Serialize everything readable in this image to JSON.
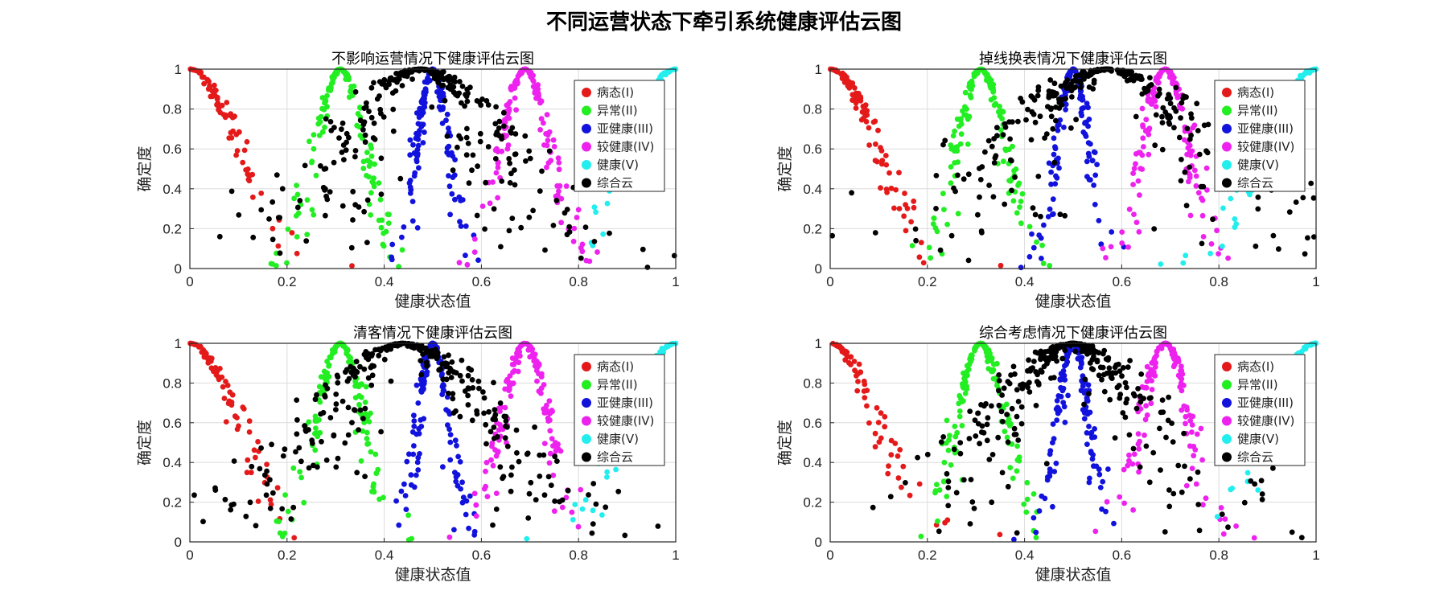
{
  "figure": {
    "suptitle": "不同运营状态下牵引系统健康评估云图"
  },
  "chart_data": [
    {
      "type": "scatter",
      "title": "不影响运营情况下健康评估云图",
      "xlabel": "健康状态值",
      "ylabel": "确定度",
      "xlim": [
        0,
        1
      ],
      "ylim": [
        0,
        1
      ],
      "xticks": [
        "0",
        "0.2",
        "0.4",
        "0.6",
        "0.8",
        "1"
      ],
      "yticks": [
        "0",
        "0.2",
        "0.4",
        "0.6",
        "0.8",
        "1"
      ],
      "grid": true,
      "legend_position": "top-right",
      "series": [
        {
          "name": "病态(I)",
          "color": "#e41a1a",
          "cloud": {
            "Ex": 0.0,
            "En": 0.1,
            "He": 0.012
          }
        },
        {
          "name": "异常(II)",
          "color": "#22ee22",
          "cloud": {
            "Ex": 0.31,
            "En": 0.05,
            "He": 0.008
          }
        },
        {
          "name": "亚健康(III)",
          "color": "#1212dd",
          "cloud": {
            "Ex": 0.5,
            "En": 0.033,
            "He": 0.006
          }
        },
        {
          "name": "较健康(IV)",
          "color": "#ee22ee",
          "cloud": {
            "Ex": 0.69,
            "En": 0.05,
            "He": 0.008
          }
        },
        {
          "name": "健康(V)",
          "color": "#22eeee",
          "cloud": {
            "Ex": 1.0,
            "En": 0.1,
            "He": 0.012
          }
        },
        {
          "name": "综合云",
          "color": "#000000",
          "cloud": {
            "Ex": 0.475,
            "En": 0.16,
            "He": 0.05
          }
        }
      ]
    },
    {
      "type": "scatter",
      "title": "掉线换表情况下健康评估云图",
      "xlabel": "健康状态值",
      "ylabel": "确定度",
      "xlim": [
        0,
        1
      ],
      "ylim": [
        0,
        1
      ],
      "xticks": [
        "0",
        "0.2",
        "0.4",
        "0.6",
        "0.8",
        "1"
      ],
      "yticks": [
        "0",
        "0.2",
        "0.4",
        "0.6",
        "0.8",
        "1"
      ],
      "grid": true,
      "legend_position": "top-right",
      "series": [
        {
          "name": "病态(I)",
          "color": "#e41a1a",
          "cloud": {
            "Ex": 0.0,
            "En": 0.1,
            "He": 0.012
          }
        },
        {
          "name": "异常(II)",
          "color": "#22ee22",
          "cloud": {
            "Ex": 0.31,
            "En": 0.05,
            "He": 0.008
          }
        },
        {
          "name": "亚健康(III)",
          "color": "#1212dd",
          "cloud": {
            "Ex": 0.5,
            "En": 0.033,
            "He": 0.006
          }
        },
        {
          "name": "较健康(IV)",
          "color": "#ee22ee",
          "cloud": {
            "Ex": 0.69,
            "En": 0.05,
            "He": 0.008
          }
        },
        {
          "name": "健康(V)",
          "color": "#22eeee",
          "cloud": {
            "Ex": 1.0,
            "En": 0.1,
            "He": 0.012
          }
        },
        {
          "name": "综合云",
          "color": "#000000",
          "cloud": {
            "Ex": 0.57,
            "En": 0.2,
            "He": 0.06
          }
        }
      ]
    },
    {
      "type": "scatter",
      "title": "清客情况下健康评估云图",
      "xlabel": "健康状态值",
      "ylabel": "确定度",
      "xlim": [
        0,
        1
      ],
      "ylim": [
        0,
        1
      ],
      "xticks": [
        "0",
        "0.2",
        "0.4",
        "0.6",
        "0.8",
        "1"
      ],
      "yticks": [
        "0",
        "0.2",
        "0.4",
        "0.6",
        "0.8",
        "1"
      ],
      "grid": true,
      "legend_position": "top-right",
      "series": [
        {
          "name": "病态(I)",
          "color": "#e41a1a",
          "cloud": {
            "Ex": 0.0,
            "En": 0.1,
            "He": 0.012
          }
        },
        {
          "name": "异常(II)",
          "color": "#22ee22",
          "cloud": {
            "Ex": 0.31,
            "En": 0.05,
            "He": 0.008
          }
        },
        {
          "name": "亚健康(III)",
          "color": "#1212dd",
          "cloud": {
            "Ex": 0.5,
            "En": 0.033,
            "He": 0.006
          }
        },
        {
          "name": "较健康(IV)",
          "color": "#ee22ee",
          "cloud": {
            "Ex": 0.69,
            "En": 0.05,
            "He": 0.008
          }
        },
        {
          "name": "健康(V)",
          "color": "#22eeee",
          "cloud": {
            "Ex": 1.0,
            "En": 0.1,
            "He": 0.012
          }
        },
        {
          "name": "综合云",
          "color": "#000000",
          "cloud": {
            "Ex": 0.44,
            "En": 0.17,
            "He": 0.05
          }
        }
      ]
    },
    {
      "type": "scatter",
      "title": "综合考虑情况下健康评估云图",
      "xlabel": "健康状态值",
      "ylabel": "确定度",
      "xlim": [
        0,
        1
      ],
      "ylim": [
        0,
        1
      ],
      "xticks": [
        "0",
        "0.2",
        "0.4",
        "0.6",
        "0.8",
        "1"
      ],
      "yticks": [
        "0",
        "0.2",
        "0.4",
        "0.6",
        "0.8",
        "1"
      ],
      "grid": true,
      "legend_position": "top-right",
      "series": [
        {
          "name": "病态(I)",
          "color": "#e41a1a",
          "cloud": {
            "Ex": 0.0,
            "En": 0.1,
            "He": 0.012
          }
        },
        {
          "name": "异常(II)",
          "color": "#22ee22",
          "cloud": {
            "Ex": 0.31,
            "En": 0.05,
            "He": 0.008
          }
        },
        {
          "name": "亚健康(III)",
          "color": "#1212dd",
          "cloud": {
            "Ex": 0.5,
            "En": 0.033,
            "He": 0.006
          }
        },
        {
          "name": "较健康(IV)",
          "color": "#ee22ee",
          "cloud": {
            "Ex": 0.69,
            "En": 0.05,
            "He": 0.008
          }
        },
        {
          "name": "健康(V)",
          "color": "#22eeee",
          "cloud": {
            "Ex": 1.0,
            "En": 0.1,
            "He": 0.012
          }
        },
        {
          "name": "综合云",
          "color": "#000000",
          "cloud": {
            "Ex": 0.5,
            "En": 0.15,
            "He": 0.05
          }
        }
      ]
    }
  ]
}
